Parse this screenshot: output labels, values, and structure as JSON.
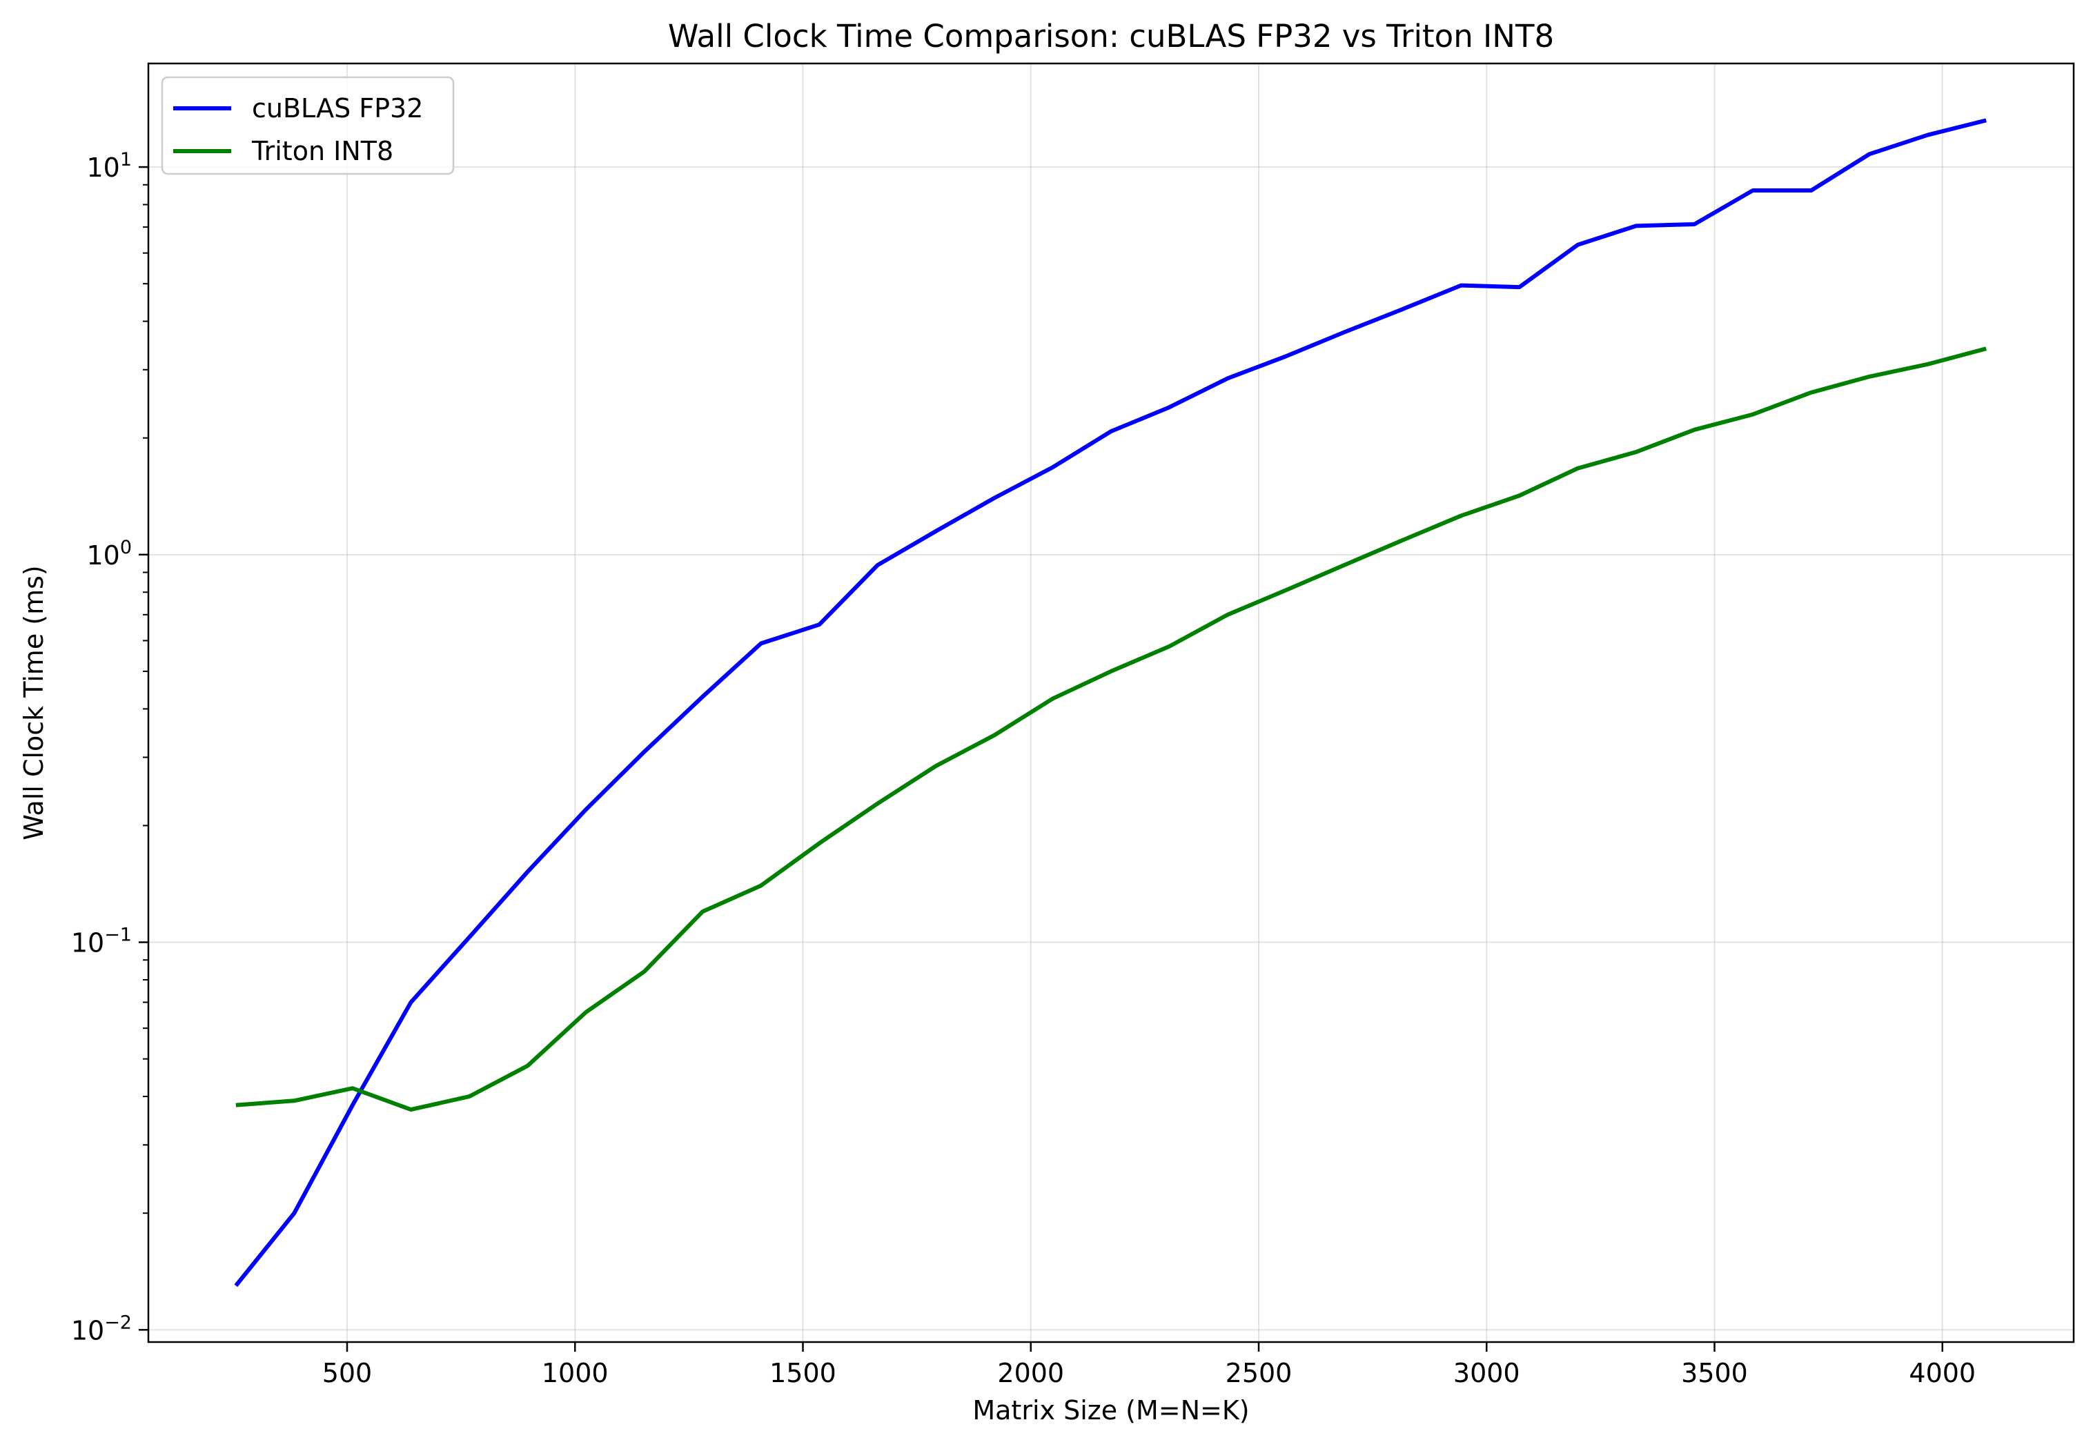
{
  "chart_data": {
    "type": "line",
    "title": "Wall Clock Time Comparison: cuBLAS FP32 vs Triton INT8",
    "xlabel": "Matrix Size (M=N=K)",
    "ylabel": "Wall Clock Time (ms)",
    "x": [
      256,
      384,
      512,
      640,
      768,
      896,
      1024,
      1152,
      1280,
      1408,
      1536,
      1664,
      1792,
      1920,
      2048,
      2176,
      2304,
      2432,
      2560,
      2688,
      2816,
      2944,
      3072,
      3200,
      3328,
      3456,
      3584,
      3712,
      3840,
      3968,
      4096
    ],
    "x_ticks": [
      {
        "value": 500,
        "label": "500"
      },
      {
        "value": 1000,
        "label": "1000"
      },
      {
        "value": 1500,
        "label": "1500"
      },
      {
        "value": 2000,
        "label": "2000"
      },
      {
        "value": 2500,
        "label": "2500"
      },
      {
        "value": 3000,
        "label": "3000"
      },
      {
        "value": 3500,
        "label": "3500"
      },
      {
        "value": 4000,
        "label": "4000"
      }
    ],
    "y_ticks": [
      {
        "value": 0.01,
        "base": "10",
        "exp": "−2"
      },
      {
        "value": 0.1,
        "base": "10",
        "exp": "−1"
      },
      {
        "value": 1,
        "base": "10",
        "exp": "0"
      },
      {
        "value": 10,
        "base": "10",
        "exp": "1"
      }
    ],
    "xlim": [
      64,
      4288
    ],
    "ylim": [
      0.0093,
      18.5
    ],
    "yscale": "log",
    "grid": true,
    "legend_position": "top-left",
    "series": [
      {
        "name": "cuBLAS FP32",
        "color": "#0000ff",
        "values": [
          0.013,
          0.02,
          0.038,
          0.07,
          0.103,
          0.152,
          0.22,
          0.31,
          0.43,
          0.59,
          0.66,
          0.94,
          1.15,
          1.4,
          1.68,
          2.08,
          2.4,
          2.85,
          3.25,
          3.75,
          4.3,
          4.95,
          4.9,
          6.3,
          7.05,
          7.12,
          8.7,
          8.7,
          10.8,
          12.1,
          13.2
        ]
      },
      {
        "name": "Triton INT8",
        "color": "#008000",
        "values": [
          0.038,
          0.039,
          0.042,
          0.037,
          0.04,
          0.048,
          0.066,
          0.084,
          0.12,
          0.14,
          0.18,
          0.228,
          0.285,
          0.342,
          0.425,
          0.5,
          0.58,
          0.7,
          0.81,
          0.94,
          1.09,
          1.26,
          1.42,
          1.67,
          1.84,
          2.1,
          2.3,
          2.62,
          2.88,
          3.1,
          3.4
        ]
      }
    ]
  }
}
